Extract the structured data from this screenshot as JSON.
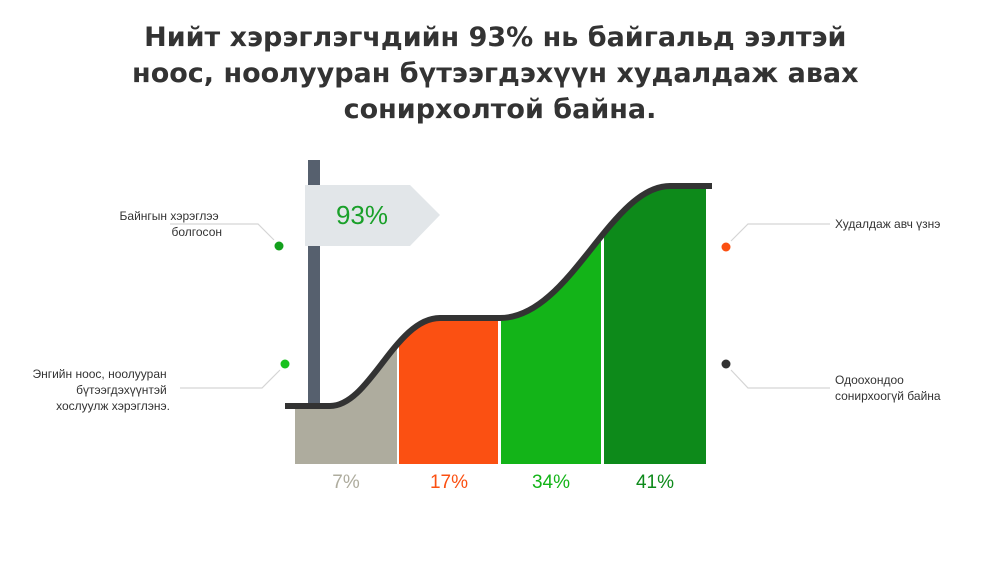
{
  "title_lines": [
    "Нийт хэрэглэгчдийн 93% нь байгальд ээлтэй",
    "ноос, ноолууран бүтээгдэхүүн худалдаж авах",
    "сонирхолтой байна."
  ],
  "flag": {
    "label": "93%"
  },
  "segments": [
    {
      "label": "7%"
    },
    {
      "label": "17%"
    },
    {
      "label": "34%"
    },
    {
      "label": "41%"
    }
  ],
  "legend_left": [
    {
      "lines": [
        "Байнгын хэрэглээ",
        "болгосон"
      ]
    },
    {
      "lines": [
        "Энгийн ноос, ноолууран",
        "бүтээгдэхүүнтэй",
        "хослуулж хэрэглэнэ."
      ]
    }
  ],
  "legend_right": [
    {
      "lines": [
        "Худалдаж авч үзнэ"
      ]
    },
    {
      "lines": [
        "Одоохондоо",
        "сонирхоогүй байна"
      ]
    }
  ]
}
